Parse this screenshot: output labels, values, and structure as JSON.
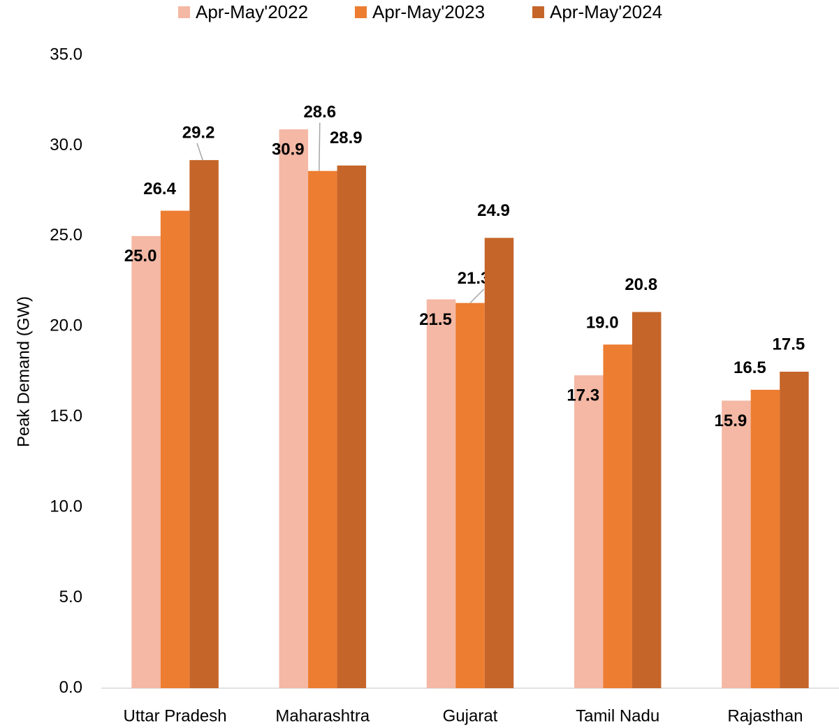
{
  "chart_data": {
    "type": "bar",
    "y_label": "Peak Demand (GW)",
    "categories": [
      "Uttar Pradesh",
      "Maharashtra",
      "Gujarat",
      "Tamil Nadu",
      "Rajasthan"
    ],
    "series": [
      {
        "name": "Apr-May'2022",
        "color": "#F4B8A4",
        "values": [
          25.0,
          30.9,
          21.5,
          17.3,
          15.9
        ],
        "value_labels": [
          "25.0",
          "30.9",
          "21.5",
          "17.3",
          "15.9"
        ]
      },
      {
        "name": "Apr-May'2023",
        "color": "#ED7D31",
        "values": [
          26.4,
          28.6,
          21.3,
          19.0,
          16.5
        ],
        "value_labels": [
          "26.4",
          "28.6",
          "21.3",
          "19.0",
          "16.5"
        ]
      },
      {
        "name": "Apr-May'2024",
        "color": "#C5652A",
        "values": [
          29.2,
          28.9,
          24.9,
          20.8,
          17.5
        ],
        "value_labels": [
          "29.2",
          "28.9",
          "24.9",
          "20.8",
          "17.5"
        ]
      }
    ],
    "ylim": [
      0,
      35
    ],
    "yticks": [
      {
        "value": 0,
        "label": "0.0"
      },
      {
        "value": 5,
        "label": "5.0"
      },
      {
        "value": 10,
        "label": "10.0"
      },
      {
        "value": 15,
        "label": "15.0"
      },
      {
        "value": 20,
        "label": "20.0"
      },
      {
        "value": 25,
        "label": "25.0"
      },
      {
        "value": 30,
        "label": "30.0"
      },
      {
        "value": 35,
        "label": "35.0"
      }
    ],
    "grid": false,
    "legend": "top"
  }
}
